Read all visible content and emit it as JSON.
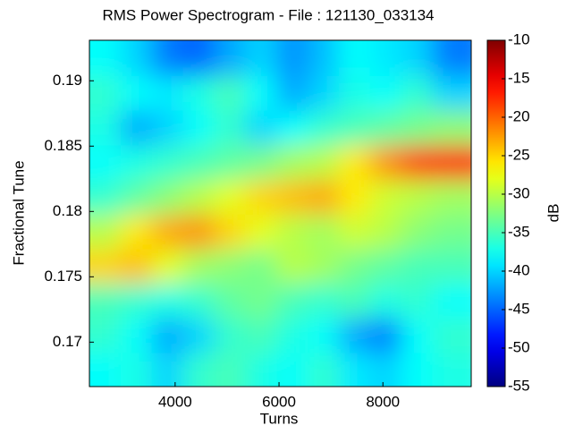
{
  "chart_data": {
    "type": "heatmap",
    "title": "RMS Power Spectrogram - File : 121130_033134",
    "x_label": "Turns",
    "y_label": "Fractional Tune",
    "colorbar_label": "dB",
    "colormap": "jet",
    "x": [
      2650,
      3250,
      3850,
      4450,
      5050,
      5650,
      6250,
      6850,
      7450,
      8050,
      8650,
      9250
    ],
    "y": [
      0.1679,
      0.1705,
      0.1732,
      0.1758,
      0.1785,
      0.1811,
      0.1838,
      0.1864,
      0.1891,
      0.1917
    ],
    "z": [
      [
        -38,
        -37,
        -40,
        -36,
        -35,
        -37,
        -38,
        -36,
        -39,
        -40,
        -38,
        -37
      ],
      [
        -36,
        -38,
        -42,
        -40,
        -36,
        -35,
        -37,
        -38,
        -42,
        -44,
        -38,
        -36
      ],
      [
        -35,
        -36,
        -37,
        -36,
        -34,
        -33,
        -35,
        -36,
        -35,
        -37,
        -36,
        -38
      ],
      [
        -25,
        -24,
        -28,
        -31,
        -32,
        -33,
        -30,
        -31,
        -33,
        -34,
        -35,
        -35
      ],
      [
        -30,
        -26,
        -23,
        -22,
        -25,
        -28,
        -30,
        -31,
        -29,
        -30,
        -32,
        -33
      ],
      [
        -36,
        -34,
        -32,
        -30,
        -28,
        -25,
        -24,
        -23,
        -26,
        -29,
        -30,
        -31
      ],
      [
        -38,
        -37,
        -36,
        -35,
        -34,
        -33,
        -31,
        -30,
        -26,
        -22,
        -18,
        -16
      ],
      [
        -37,
        -42,
        -40,
        -38,
        -36,
        -40,
        -38,
        -36,
        -35,
        -34,
        -33,
        -32
      ],
      [
        -36,
        -38,
        -39,
        -37,
        -35,
        -38,
        -42,
        -40,
        -37,
        -38,
        -36,
        -40
      ],
      [
        -38,
        -40,
        -44,
        -45,
        -42,
        -40,
        -43,
        -41,
        -38,
        -39,
        -40,
        -44
      ]
    ],
    "xlim": [
      2350,
      9700
    ],
    "xticks": [
      4000,
      6000,
      8000
    ],
    "ylim": [
      0.1666,
      0.1931
    ],
    "yticks": [
      0.17,
      0.175,
      0.18,
      0.185,
      0.19
    ],
    "zlim": [
      -55,
      -10
    ],
    "zticks": [
      -10,
      -15,
      -20,
      -25,
      -30,
      -35,
      -40,
      -45,
      -50,
      -55
    ]
  }
}
